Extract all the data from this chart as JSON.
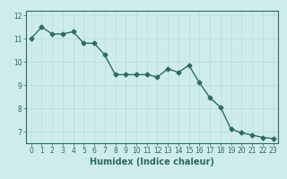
{
  "x": [
    0,
    1,
    2,
    3,
    4,
    5,
    6,
    7,
    8,
    9,
    10,
    11,
    12,
    13,
    14,
    15,
    16,
    17,
    18,
    19,
    20,
    21,
    22,
    23
  ],
  "y": [
    11.0,
    11.5,
    11.2,
    11.2,
    11.3,
    10.8,
    10.8,
    10.3,
    9.45,
    9.45,
    9.45,
    9.45,
    9.35,
    9.7,
    9.55,
    9.85,
    9.1,
    8.45,
    8.05,
    7.1,
    6.95,
    6.85,
    6.75,
    6.7
  ],
  "line_color": "#2e6b5e",
  "marker": "D",
  "markersize": 2.5,
  "linewidth": 1.0,
  "background_color": "#ceecea",
  "grid_color": "#b8dbd8",
  "xlabel": "Humidex (Indice chaleur)",
  "xlabel_fontsize": 7,
  "xlim": [
    -0.5,
    23.5
  ],
  "ylim": [
    6.5,
    12.2
  ],
  "yticks": [
    7,
    8,
    9,
    10,
    11,
    12
  ],
  "xticks": [
    0,
    1,
    2,
    3,
    4,
    5,
    6,
    7,
    8,
    9,
    10,
    11,
    12,
    13,
    14,
    15,
    16,
    17,
    18,
    19,
    20,
    21,
    22,
    23
  ],
  "tick_color": "#2e6b5e",
  "tick_labelsize": 5.5,
  "spine_color": "#2e6b5e"
}
